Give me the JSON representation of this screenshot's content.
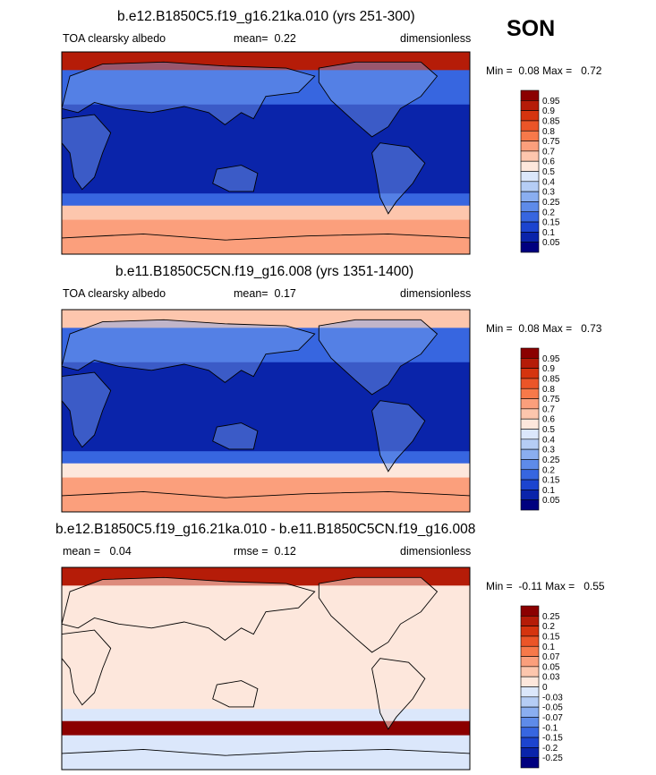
{
  "season": "SON",
  "chart_data": [
    {
      "type": "heatmap",
      "title": "b.e12.B1850C5.f19_g16.21ka.010 (yrs 251-300)",
      "variable": "TOA clearsky albedo",
      "mean_label": "mean=",
      "mean": "0.22",
      "units": "dimensionless",
      "min_label": "Min =",
      "min": "0.08",
      "max_label": "Max =",
      "max": "0.72",
      "levels": [
        "0.95",
        "0.9",
        "0.85",
        "0.8",
        "0.75",
        "0.7",
        "0.6",
        "0.5",
        "0.4",
        "0.3",
        "0.25",
        "0.2",
        "0.15",
        "0.1",
        "0.05"
      ],
      "colors": [
        "#8b0000",
        "#b51c08",
        "#d5340f",
        "#eb5528",
        "#f7794a",
        "#fb9f7c",
        "#fdc6ad",
        "#fde7dc",
        "#dbe7fb",
        "#b5cdf5",
        "#8aaef0",
        "#5e8be9",
        "#3766e0",
        "#1c44cf",
        "#0a24aa",
        "#00007f"
      ],
      "zones": [
        {
          "label": "polar-north",
          "cls": "1"
        },
        {
          "label": "midlat-north",
          "cls": "12"
        },
        {
          "label": "tropics",
          "cls": "14"
        },
        {
          "label": "midlat-south",
          "cls": "12"
        },
        {
          "label": "ice-edge-south",
          "cls": "6"
        },
        {
          "label": "polar-south",
          "cls": "5"
        }
      ]
    },
    {
      "type": "heatmap",
      "title": "b.e11.B1850C5CN.f19_g16.008 (yrs 1351-1400)",
      "variable": "TOA clearsky albedo",
      "mean_label": "mean=",
      "mean": "0.17",
      "units": "dimensionless",
      "min_label": "Min =",
      "min": "0.08",
      "max_label": "Max =",
      "max": "0.73",
      "levels": [
        "0.95",
        "0.9",
        "0.85",
        "0.8",
        "0.75",
        "0.7",
        "0.6",
        "0.5",
        "0.4",
        "0.3",
        "0.25",
        "0.2",
        "0.15",
        "0.1",
        "0.05"
      ],
      "colors": [
        "#8b0000",
        "#b51c08",
        "#d5340f",
        "#eb5528",
        "#f7794a",
        "#fb9f7c",
        "#fdc6ad",
        "#fde7dc",
        "#dbe7fb",
        "#b5cdf5",
        "#8aaef0",
        "#5e8be9",
        "#3766e0",
        "#1c44cf",
        "#0a24aa",
        "#00007f"
      ],
      "zones": [
        {
          "label": "polar-north",
          "cls": "6"
        },
        {
          "label": "midlat-north",
          "cls": "12"
        },
        {
          "label": "tropics",
          "cls": "14"
        },
        {
          "label": "midlat-south",
          "cls": "12"
        },
        {
          "label": "ice-edge-south",
          "cls": "7"
        },
        {
          "label": "polar-south",
          "cls": "5"
        }
      ]
    },
    {
      "type": "heatmap",
      "title": "b.e12.B1850C5.f19_g16.21ka.010 - b.e11.B1850C5CN.f19_g16.008",
      "mean_label": "mean =",
      "mean": "0.04",
      "rmse_label": "rmse =",
      "rmse": "0.12",
      "units": "dimensionless",
      "min_label": "Min =",
      "min": "-0.11",
      "max_label": "Max =",
      "max": "0.55",
      "levels": [
        "0.25",
        "0.2",
        "0.15",
        "0.1",
        "0.07",
        "0.05",
        "0.03",
        "0",
        "-0.03",
        "-0.05",
        "-0.07",
        "-0.1",
        "-0.15",
        "-0.2",
        "-0.25"
      ],
      "colors": [
        "#8b0000",
        "#b51c08",
        "#d5340f",
        "#eb5528",
        "#f7794a",
        "#fb9f7c",
        "#fdc6ad",
        "#fde7dc",
        "#dbe7fb",
        "#b5cdf5",
        "#8aaef0",
        "#5e8be9",
        "#3766e0",
        "#1c44cf",
        "#0a24aa",
        "#00007f"
      ],
      "zones": [
        {
          "label": "polar-north",
          "cls": "1"
        },
        {
          "label": "midlat-north",
          "cls": "7"
        },
        {
          "label": "tropics",
          "cls": "7"
        },
        {
          "label": "midlat-south",
          "cls": "8"
        },
        {
          "label": "ice-edge-south",
          "cls": "0"
        },
        {
          "label": "polar-south",
          "cls": "8"
        }
      ]
    }
  ]
}
